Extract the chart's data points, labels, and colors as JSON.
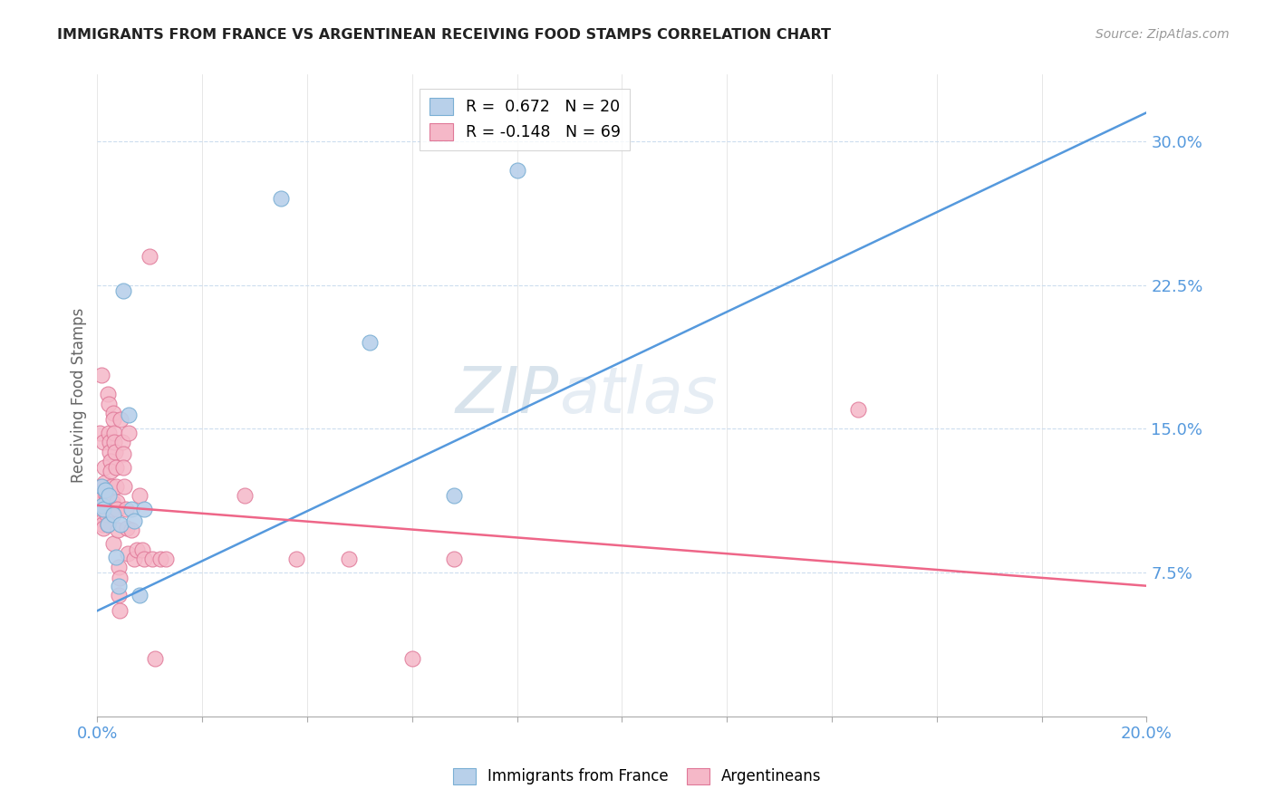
{
  "title": "IMMIGRANTS FROM FRANCE VS ARGENTINEAN RECEIVING FOOD STAMPS CORRELATION CHART",
  "source": "Source: ZipAtlas.com",
  "ylabel": "Receiving Food Stamps",
  "yticks": [
    "7.5%",
    "15.0%",
    "22.5%",
    "30.0%"
  ],
  "ytick_vals": [
    0.075,
    0.15,
    0.225,
    0.3
  ],
  "xlim": [
    0.0,
    0.2
  ],
  "ylim": [
    0.0,
    0.335
  ],
  "legend_r1": "R =  0.672   N = 20",
  "legend_r2": "R = -0.148   N = 69",
  "blue_fill": "#b8d0ea",
  "pink_fill": "#f5b8c8",
  "blue_edge": "#7aafd4",
  "pink_edge": "#e07898",
  "line_blue": "#5599dd",
  "line_pink": "#ee6688",
  "tick_color": "#5599dd",
  "watermark_color": "#ccddf0",
  "blue_points": [
    [
      0.0008,
      0.12
    ],
    [
      0.001,
      0.11
    ],
    [
      0.0012,
      0.108
    ],
    [
      0.0015,
      0.118
    ],
    [
      0.002,
      0.1
    ],
    [
      0.0022,
      0.115
    ],
    [
      0.003,
      0.105
    ],
    [
      0.0035,
      0.083
    ],
    [
      0.004,
      0.068
    ],
    [
      0.0045,
      0.1
    ],
    [
      0.005,
      0.222
    ],
    [
      0.006,
      0.157
    ],
    [
      0.0065,
      0.108
    ],
    [
      0.007,
      0.102
    ],
    [
      0.008,
      0.063
    ],
    [
      0.009,
      0.108
    ],
    [
      0.035,
      0.27
    ],
    [
      0.052,
      0.195
    ],
    [
      0.068,
      0.115
    ],
    [
      0.08,
      0.285
    ]
  ],
  "pink_points": [
    [
      0.0005,
      0.148
    ],
    [
      0.0006,
      0.12
    ],
    [
      0.0007,
      0.115
    ],
    [
      0.0008,
      0.178
    ],
    [
      0.0008,
      0.108
    ],
    [
      0.0009,
      0.105
    ],
    [
      0.001,
      0.102
    ],
    [
      0.001,
      0.1
    ],
    [
      0.0011,
      0.098
    ],
    [
      0.0012,
      0.143
    ],
    [
      0.0013,
      0.13
    ],
    [
      0.0014,
      0.122
    ],
    [
      0.0015,
      0.118
    ],
    [
      0.0016,
      0.115
    ],
    [
      0.0017,
      0.112
    ],
    [
      0.0018,
      0.108
    ],
    [
      0.0019,
      0.105
    ],
    [
      0.002,
      0.1
    ],
    [
      0.002,
      0.168
    ],
    [
      0.0021,
      0.163
    ],
    [
      0.0022,
      0.148
    ],
    [
      0.0023,
      0.143
    ],
    [
      0.0024,
      0.138
    ],
    [
      0.0025,
      0.133
    ],
    [
      0.0026,
      0.128
    ],
    [
      0.0027,
      0.12
    ],
    [
      0.0028,
      0.112
    ],
    [
      0.0029,
      0.108
    ],
    [
      0.003,
      0.09
    ],
    [
      0.003,
      0.158
    ],
    [
      0.0031,
      0.155
    ],
    [
      0.0032,
      0.148
    ],
    [
      0.0033,
      0.143
    ],
    [
      0.0034,
      0.138
    ],
    [
      0.0035,
      0.13
    ],
    [
      0.0036,
      0.12
    ],
    [
      0.0037,
      0.112
    ],
    [
      0.0038,
      0.108
    ],
    [
      0.0039,
      0.097
    ],
    [
      0.004,
      0.078
    ],
    [
      0.0041,
      0.063
    ],
    [
      0.0042,
      0.072
    ],
    [
      0.0043,
      0.055
    ],
    [
      0.0045,
      0.155
    ],
    [
      0.0047,
      0.143
    ],
    [
      0.0049,
      0.137
    ],
    [
      0.005,
      0.13
    ],
    [
      0.0052,
      0.12
    ],
    [
      0.0054,
      0.108
    ],
    [
      0.0056,
      0.098
    ],
    [
      0.0058,
      0.085
    ],
    [
      0.006,
      0.148
    ],
    [
      0.0065,
      0.097
    ],
    [
      0.007,
      0.082
    ],
    [
      0.0075,
      0.087
    ],
    [
      0.008,
      0.115
    ],
    [
      0.0085,
      0.087
    ],
    [
      0.009,
      0.082
    ],
    [
      0.01,
      0.24
    ],
    [
      0.0105,
      0.082
    ],
    [
      0.011,
      0.03
    ],
    [
      0.012,
      0.082
    ],
    [
      0.013,
      0.082
    ],
    [
      0.028,
      0.115
    ],
    [
      0.038,
      0.082
    ],
    [
      0.048,
      0.082
    ],
    [
      0.068,
      0.082
    ],
    [
      0.145,
      0.16
    ],
    [
      0.06,
      0.03
    ]
  ],
  "blue_line_x": [
    0.0,
    0.2
  ],
  "blue_line_y": [
    0.055,
    0.315
  ],
  "pink_line_x": [
    0.0,
    0.2
  ],
  "pink_line_y": [
    0.11,
    0.068
  ]
}
